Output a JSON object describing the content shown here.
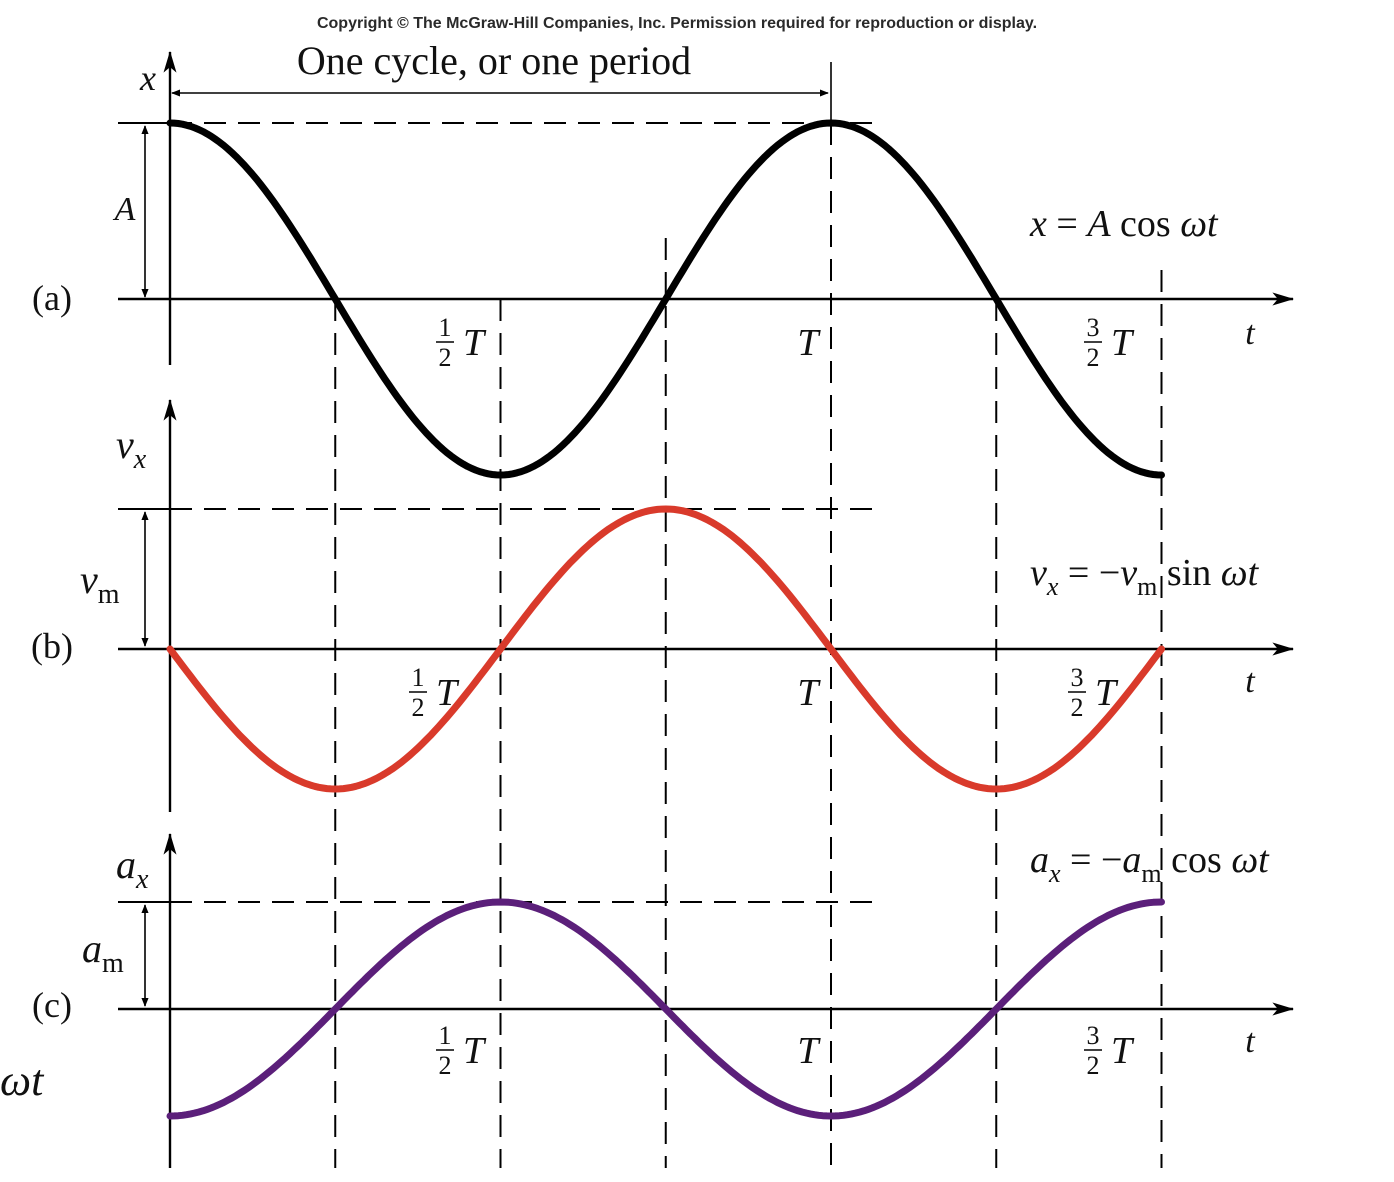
{
  "copyright": "Copyright © The McGraw-Hill Companies, Inc. Permission required for reproduction or display.",
  "period_label": "One cycle, or one period",
  "left_fragment": "ωt",
  "ticks": {
    "half": {
      "num": "1",
      "den": "2",
      "sym": "T"
    },
    "one": "T",
    "three_half": {
      "num": "3",
      "den": "2",
      "sym": "T"
    }
  },
  "t_axis_label": "t",
  "panels": [
    {
      "id": "a",
      "tag": "(a)",
      "y_label": "x",
      "y_sub": "",
      "amp_label": "A",
      "amp_sub": "",
      "equation": "x = A cos ωt"
    },
    {
      "id": "b",
      "tag": "(b)",
      "y_label": "v",
      "y_sub": "x",
      "amp_label": "v",
      "amp_sub": "m",
      "equation": "vx = −vm sin ωt"
    },
    {
      "id": "c",
      "tag": "(c)",
      "y_label": "a",
      "y_sub": "x",
      "amp_label": "a",
      "amp_sub": "m",
      "equation": "ax = −am cos ωt"
    }
  ],
  "colors": {
    "x_curve": "#000000",
    "v_curve": "#d93a2b",
    "a_curve": "#5b1f7a"
  },
  "chart_data": [
    {
      "type": "line",
      "title": "(a)",
      "x": [
        0,
        0.25,
        0.5,
        0.75,
        1.0,
        1.25,
        1.5
      ],
      "values": [
        1,
        0,
        -1,
        0,
        1,
        0,
        -1
      ],
      "xlabel": "t (periods T)",
      "ylabel": "x",
      "function": "x = A cos ωt",
      "xlim": [
        0,
        1.5
      ],
      "ylim": [
        -1,
        1
      ]
    },
    {
      "type": "line",
      "title": "(b)",
      "x": [
        0,
        0.25,
        0.5,
        0.75,
        1.0,
        1.25,
        1.5
      ],
      "values": [
        0,
        -1,
        0,
        1,
        0,
        -1,
        0
      ],
      "xlabel": "t (periods T)",
      "ylabel": "vx",
      "function": "vx = −vm sin ωt",
      "xlim": [
        0,
        1.5
      ],
      "ylim": [
        -1,
        1
      ]
    },
    {
      "type": "line",
      "title": "(c)",
      "x": [
        0,
        0.25,
        0.5,
        0.75,
        1.0,
        1.25,
        1.5
      ],
      "values": [
        -1,
        0,
        1,
        0,
        -1,
        0,
        1
      ],
      "xlabel": "t (periods T)",
      "ylabel": "ax",
      "function": "ax = −am cos ωt",
      "xlim": [
        0,
        1.5
      ],
      "ylim": [
        -1,
        1
      ]
    }
  ]
}
